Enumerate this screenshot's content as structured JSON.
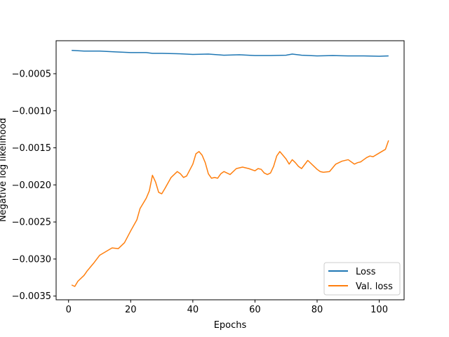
{
  "chart_data": {
    "type": "line",
    "title": "",
    "xlabel": "Epochs",
    "ylabel": "Negative log likelihood",
    "xlim": [
      -4,
      108
    ],
    "ylim": [
      -0.00355,
      -5.5e-05
    ],
    "xticks": [
      0,
      20,
      40,
      60,
      80,
      100
    ],
    "xtick_labels": [
      "0",
      "20",
      "40",
      "60",
      "80",
      "100"
    ],
    "yticks": [
      -0.0005,
      -0.001,
      -0.0015,
      -0.002,
      -0.0025,
      -0.003,
      -0.0035
    ],
    "ytick_labels": [
      "−0.0005",
      "−0.0010",
      "−0.0015",
      "−0.0020",
      "−0.0025",
      "−0.0030",
      "−0.0035"
    ],
    "legend_position": "lower-right",
    "grid": false,
    "series": [
      {
        "name": "Loss",
        "color": "#1f77b4",
        "x": [
          1,
          5,
          10,
          15,
          20,
          25,
          27,
          30,
          35,
          40,
          45,
          50,
          55,
          60,
          65,
          70,
          72,
          75,
          80,
          85,
          90,
          95,
          100,
          103
        ],
        "y": [
          -0.000185,
          -0.000195,
          -0.000195,
          -0.000205,
          -0.000215,
          -0.000215,
          -0.000225,
          -0.000225,
          -0.00023,
          -0.00024,
          -0.000235,
          -0.00025,
          -0.000245,
          -0.000255,
          -0.000255,
          -0.00025,
          -0.000235,
          -0.00025,
          -0.00026,
          -0.000255,
          -0.00026,
          -0.00026,
          -0.000265,
          -0.00026
        ]
      },
      {
        "name": "Val. loss",
        "color": "#ff7f0e",
        "x": [
          1,
          2,
          3,
          5,
          6,
          8,
          10,
          12,
          14,
          16,
          18,
          20,
          22,
          23,
          25,
          26,
          27,
          28,
          29,
          30,
          31,
          33,
          35,
          36,
          37,
          38,
          40,
          41,
          42,
          43,
          44,
          45,
          46,
          47,
          48,
          49,
          50,
          52,
          54,
          56,
          58,
          60,
          61,
          62,
          63,
          64,
          65,
          66,
          67,
          68,
          69,
          70,
          71,
          72,
          73,
          74,
          75,
          77,
          79,
          80,
          81,
          82,
          84,
          86,
          88,
          90,
          92,
          93,
          94,
          95,
          96,
          97,
          98,
          100,
          102,
          103
        ],
        "y": [
          -0.00335,
          -0.00337,
          -0.0033,
          -0.00322,
          -0.00316,
          -0.00306,
          -0.00295,
          -0.0029,
          -0.00285,
          -0.00286,
          -0.00278,
          -0.00262,
          -0.00247,
          -0.00232,
          -0.00218,
          -0.00208,
          -0.00187,
          -0.00196,
          -0.0021,
          -0.00212,
          -0.00205,
          -0.0019,
          -0.00182,
          -0.00185,
          -0.0019,
          -0.00188,
          -0.00172,
          -0.00158,
          -0.00155,
          -0.0016,
          -0.0017,
          -0.00185,
          -0.00191,
          -0.0019,
          -0.00191,
          -0.00185,
          -0.00182,
          -0.00186,
          -0.00178,
          -0.00176,
          -0.00178,
          -0.00181,
          -0.00178,
          -0.00179,
          -0.00184,
          -0.00186,
          -0.00184,
          -0.00175,
          -0.00161,
          -0.00155,
          -0.0016,
          -0.00165,
          -0.00172,
          -0.00166,
          -0.0017,
          -0.00175,
          -0.00178,
          -0.00167,
          -0.00175,
          -0.00179,
          -0.00182,
          -0.00183,
          -0.00182,
          -0.00172,
          -0.00168,
          -0.00166,
          -0.00172,
          -0.0017,
          -0.00169,
          -0.00166,
          -0.00163,
          -0.00161,
          -0.00162,
          -0.00157,
          -0.00152,
          -0.0014
        ]
      }
    ]
  }
}
